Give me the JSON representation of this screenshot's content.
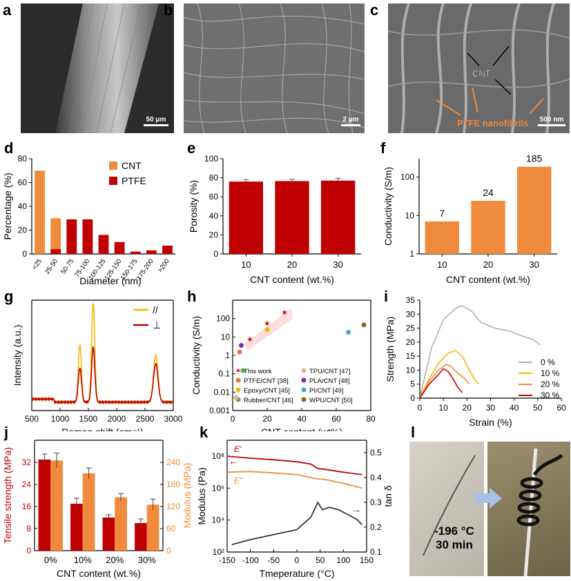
{
  "panels": {
    "a": {
      "label": "a",
      "scale_bar": "50 μm"
    },
    "b": {
      "label": "b",
      "scale_bar": "2 μm"
    },
    "c": {
      "label": "c",
      "scale_bar": "500 nm",
      "annot_cnt": "CNT",
      "annot_ptfe": "PTFE nanofibrils"
    },
    "l": {
      "label": "l",
      "temp": "-196 °C",
      "time": "30 min"
    }
  },
  "colors": {
    "cnt": "#f08a3c",
    "ptfe": "#c00000",
    "yellow": "#f5b800",
    "dark": "#333333",
    "gray": "#b0b0b0"
  },
  "chart_data": [
    {
      "id": "d",
      "label": "d",
      "type": "bar",
      "title": "",
      "categories": [
        "<25",
        "25-50",
        "50-75",
        "75-100",
        "100-125",
        "125-150",
        "150-175",
        "175-200",
        ">200"
      ],
      "series": [
        {
          "name": "CNT",
          "values": [
            70,
            30,
            0,
            0,
            0,
            0,
            0,
            0,
            0
          ]
        },
        {
          "name": "PTFE",
          "values": [
            0,
            4,
            29,
            29,
            16,
            10,
            2,
            3,
            7
          ]
        }
      ],
      "xlabel": "Diameter (nm)",
      "ylabel": "Percentage (%)",
      "ylim": [
        0,
        80
      ],
      "yticks": [
        "0",
        "20",
        "40",
        "60",
        "80"
      ],
      "legend": "top-right"
    },
    {
      "id": "e",
      "label": "e",
      "type": "bar",
      "categories": [
        "10",
        "20",
        "30"
      ],
      "values": [
        76,
        76.5,
        77
      ],
      "errors": [
        2,
        2,
        2.5
      ],
      "xlabel": "CNT content (wt.%)",
      "ylabel": "Porosity (%)",
      "ylim": [
        0,
        100
      ],
      "yticks": [
        "0",
        "20",
        "40",
        "60",
        "80",
        "100"
      ]
    },
    {
      "id": "f",
      "label": "f",
      "type": "bar",
      "scale": "log",
      "categories": [
        "10",
        "20",
        "30"
      ],
      "values": [
        7,
        24,
        185
      ],
      "data_labels": [
        "7",
        "24",
        "185"
      ],
      "xlabel": "CNT content (wt.%)",
      "ylabel": "Conductivity (S/m)",
      "ylim": [
        1,
        300
      ],
      "yticks": [
        "1",
        "10",
        "100"
      ]
    },
    {
      "id": "g",
      "label": "g",
      "type": "line",
      "series": [
        {
          "name": "//",
          "peaks": [
            [
              1350,
              0.55
            ],
            [
              1585,
              0.95
            ],
            [
              2690,
              0.45
            ]
          ]
        },
        {
          "name": "⊥",
          "peaks": [
            [
              1350,
              0.33
            ],
            [
              1585,
              0.53
            ],
            [
              2690,
              0.37
            ]
          ]
        }
      ],
      "xlabel": "Raman shift (cm⁻¹)",
      "ylabel": "Intensity (a.u.)",
      "xlim": [
        500,
        3000
      ],
      "xticks": [
        "500",
        "1000",
        "1500",
        "2000",
        "2500",
        "3000"
      ],
      "legend": "top-right"
    },
    {
      "id": "h",
      "label": "h",
      "type": "scatter",
      "scale": "log-y",
      "series": [
        {
          "name": "This work",
          "points": [
            [
              10,
              7
            ],
            [
              20,
              50
            ],
            [
              30,
              200
            ]
          ]
        },
        {
          "name": "PTFE/CNT [38]",
          "points": [
            [
              4,
              1.5
            ]
          ]
        },
        {
          "name": "Epoxy/CNT [45]",
          "points": [
            [
              20,
              25
            ]
          ]
        },
        {
          "name": "Rubber/CNT [46]",
          "points": [
            [
              6,
              0.15
            ]
          ]
        },
        {
          "name": "TPU/CNT [47]",
          "points": [
            [
              2,
              0.005
            ]
          ]
        },
        {
          "name": "PLA/CNT [48]",
          "points": [
            [
              5,
              3.5
            ]
          ]
        },
        {
          "name": "PI/CNT [49]",
          "points": [
            [
              67,
              18
            ]
          ]
        },
        {
          "name": "WPU/CNT [50]",
          "points": [
            [
              76,
              45
            ]
          ]
        }
      ],
      "xlabel": "CNT content (wt%)",
      "ylabel": "Conductivity (S/m)",
      "xlim": [
        0,
        80
      ],
      "ylim": [
        0.001,
        1000
      ],
      "xticks": [
        "0",
        "20",
        "40",
        "60",
        "80"
      ],
      "yticks": [
        "0.001",
        "0.01",
        "0.1",
        "1",
        "10",
        "100"
      ],
      "legend": "bottom-right"
    },
    {
      "id": "i",
      "label": "i",
      "type": "line",
      "series": [
        {
          "name": "0 %",
          "points": [
            [
              0,
              0
            ],
            [
              5,
              18
            ],
            [
              10,
              28
            ],
            [
              15,
              32
            ],
            [
              18,
              33
            ],
            [
              22,
              31
            ],
            [
              26,
              27
            ],
            [
              32,
              25
            ],
            [
              38,
              24
            ],
            [
              44,
              22
            ],
            [
              48,
              21
            ],
            [
              51,
              19
            ]
          ]
        },
        {
          "name": "10 %",
          "points": [
            [
              0,
              0
            ],
            [
              4,
              7
            ],
            [
              8,
              12.5
            ],
            [
              12,
              16
            ],
            [
              15,
              17
            ],
            [
              18,
              15
            ],
            [
              21,
              10
            ],
            [
              23,
              7
            ],
            [
              25,
              5
            ]
          ]
        },
        {
          "name": "20 %",
          "points": [
            [
              0,
              0
            ],
            [
              4,
              6
            ],
            [
              8,
              10
            ],
            [
              11,
              12
            ],
            [
              13,
              11.5
            ],
            [
              16,
              9
            ],
            [
              19,
              7
            ],
            [
              21,
              5
            ]
          ]
        },
        {
          "name": "30 %",
          "points": [
            [
              0,
              0
            ],
            [
              4,
              5
            ],
            [
              8,
              8.5
            ],
            [
              10,
              10.5
            ],
            [
              12,
              9.5
            ],
            [
              14,
              7
            ],
            [
              16,
              4
            ],
            [
              18,
              2
            ]
          ]
        }
      ],
      "xlabel": "Strain (%)",
      "ylabel": "Strength (MPa)",
      "xlim": [
        0,
        60
      ],
      "ylim": [
        0,
        35
      ],
      "xticks": [
        "0",
        "10",
        "20",
        "30",
        "40",
        "50",
        "60"
      ],
      "yticks": [
        "0",
        "5",
        "10",
        "15",
        "20",
        "25",
        "30",
        "35"
      ],
      "legend": "right"
    },
    {
      "id": "j",
      "label": "j",
      "type": "bar",
      "categories": [
        "0%",
        "10%",
        "20%",
        "30%"
      ],
      "series": [
        {
          "name": "Tensile strength",
          "axis": "left",
          "values": [
            33,
            17,
            12,
            10
          ],
          "errors": [
            2,
            2,
            1,
            1.5
          ]
        },
        {
          "name": "Modulus",
          "axis": "right",
          "values": [
            245,
            210,
            145,
            125
          ],
          "errors": [
            20,
            15,
            10,
            15
          ]
        }
      ],
      "xlabel": "CNT content (wt.%)",
      "ylabel": "Tensile strength (MPa)",
      "ylabel2": "Modulus (MPa)",
      "ylim": [
        0,
        40
      ],
      "ylim2": [
        0,
        300
      ],
      "yticks": [
        "0",
        "8",
        "16",
        "24",
        "32"
      ],
      "yticks2": [
        "0",
        "60",
        "120",
        "180",
        "240"
      ]
    },
    {
      "id": "k",
      "label": "k",
      "type": "line",
      "series": [
        {
          "name": "E'",
          "axis": "left",
          "points": [
            [
              -150,
              100000000.0
            ],
            [
              -100,
              75000000.0
            ],
            [
              -50,
              60000000.0
            ],
            [
              0,
              45000000.0
            ],
            [
              30,
              32000000.0
            ],
            [
              45,
              17000000.0
            ],
            [
              60,
              15000000.0
            ],
            [
              100,
              10000000.0
            ],
            [
              140,
              7000000.0
            ]
          ]
        },
        {
          "name": "E\"",
          "axis": "left",
          "points": [
            [
              -150,
              10000000.0
            ],
            [
              -100,
              11000000.0
            ],
            [
              -50,
              9000000.0
            ],
            [
              0,
              7000000.0
            ],
            [
              40,
              4000000.0
            ],
            [
              60,
              3500000.0
            ],
            [
              100,
              2000000.0
            ],
            [
              140,
              1000000.0
            ]
          ]
        },
        {
          "name": "tan δ",
          "axis": "right",
          "points": [
            [
              -140,
              0.13
            ],
            [
              -100,
              0.15
            ],
            [
              -50,
              0.17
            ],
            [
              0,
              0.19
            ],
            [
              30,
              0.24
            ],
            [
              45,
              0.3
            ],
            [
              55,
              0.27
            ],
            [
              70,
              0.28
            ],
            [
              90,
              0.27
            ],
            [
              110,
              0.25
            ],
            [
              130,
              0.23
            ],
            [
              140,
              0.21
            ]
          ]
        }
      ],
      "xlabel": "Tmeperature (°C)",
      "ylabel": "Modulus (Pa)",
      "ylabel2": "tan δ",
      "xlim": [
        -150,
        150
      ],
      "ylim": [
        100,
        1000000000.0
      ],
      "ylim2": [
        0.1,
        0.55
      ],
      "xticks": [
        "-150",
        "-100",
        "-50",
        "0",
        "50",
        "100",
        "150"
      ],
      "yticks": [
        "10²",
        "10⁴",
        "10⁶",
        "10⁸"
      ],
      "yticks2": [
        "0.1",
        "0.2",
        "0.3",
        "0.4",
        "0.5"
      ],
      "annotations": [
        "E'",
        "E\""
      ]
    }
  ]
}
